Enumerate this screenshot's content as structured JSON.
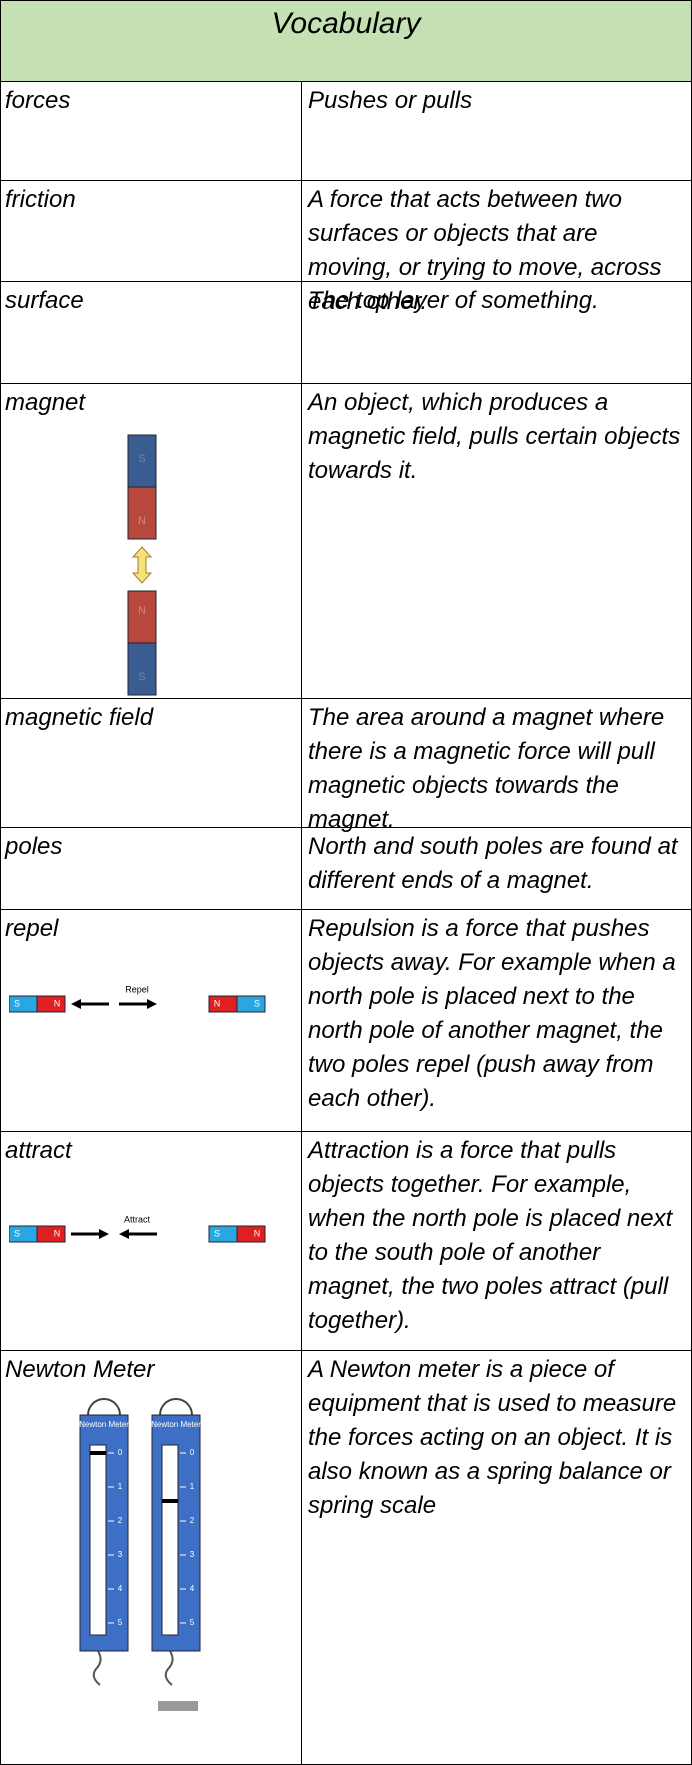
{
  "header": {
    "title": "Vocabulary"
  },
  "table": {
    "rows": [
      [
        "forces",
        "Pushes or pulls"
      ],
      [
        "friction",
        "A force that acts between two surfaces or objects that are moving, or trying to move, across each other."
      ],
      [
        "surface",
        "The top layer of something."
      ],
      [
        "magnet",
        "An object, which produces a magnetic field, pulls certain objects towards it."
      ],
      [
        "magnetic field",
        "The area around a magnet where there is a magnetic force will pull magnetic objects towards the magnet."
      ],
      [
        "poles",
        "North and south poles are found at different ends of a magnet."
      ],
      [
        "repel",
        "Repulsion is a force that pushes objects away.  For example when a north pole is placed next to the north pole of another magnet, the two poles repel (push away from each other)."
      ],
      [
        "attract",
        "Attraction is a force that pulls objects together.  For example, when the north pole is placed next to the south pole of another magnet, the two poles attract (pull together)."
      ],
      [
        "Newton Meter",
        "A Newton meter is a piece of equipment that is used to measure the forces acting on an object. It is also known as a spring balance or spring scale"
      ]
    ]
  },
  "images": {
    "magnet": {
      "poles": [
        "S",
        "N",
        "N",
        "S"
      ]
    },
    "repel": {
      "label": "Repel",
      "poles": [
        "S",
        "N",
        "N",
        "S"
      ]
    },
    "attract": {
      "label": "Attract",
      "poles": [
        "S",
        "N",
        "S",
        "N"
      ]
    },
    "newton_meter": {
      "label": "Newton Meter",
      "scale": [
        "0",
        "1",
        "2",
        "3",
        "4",
        "5"
      ]
    }
  }
}
